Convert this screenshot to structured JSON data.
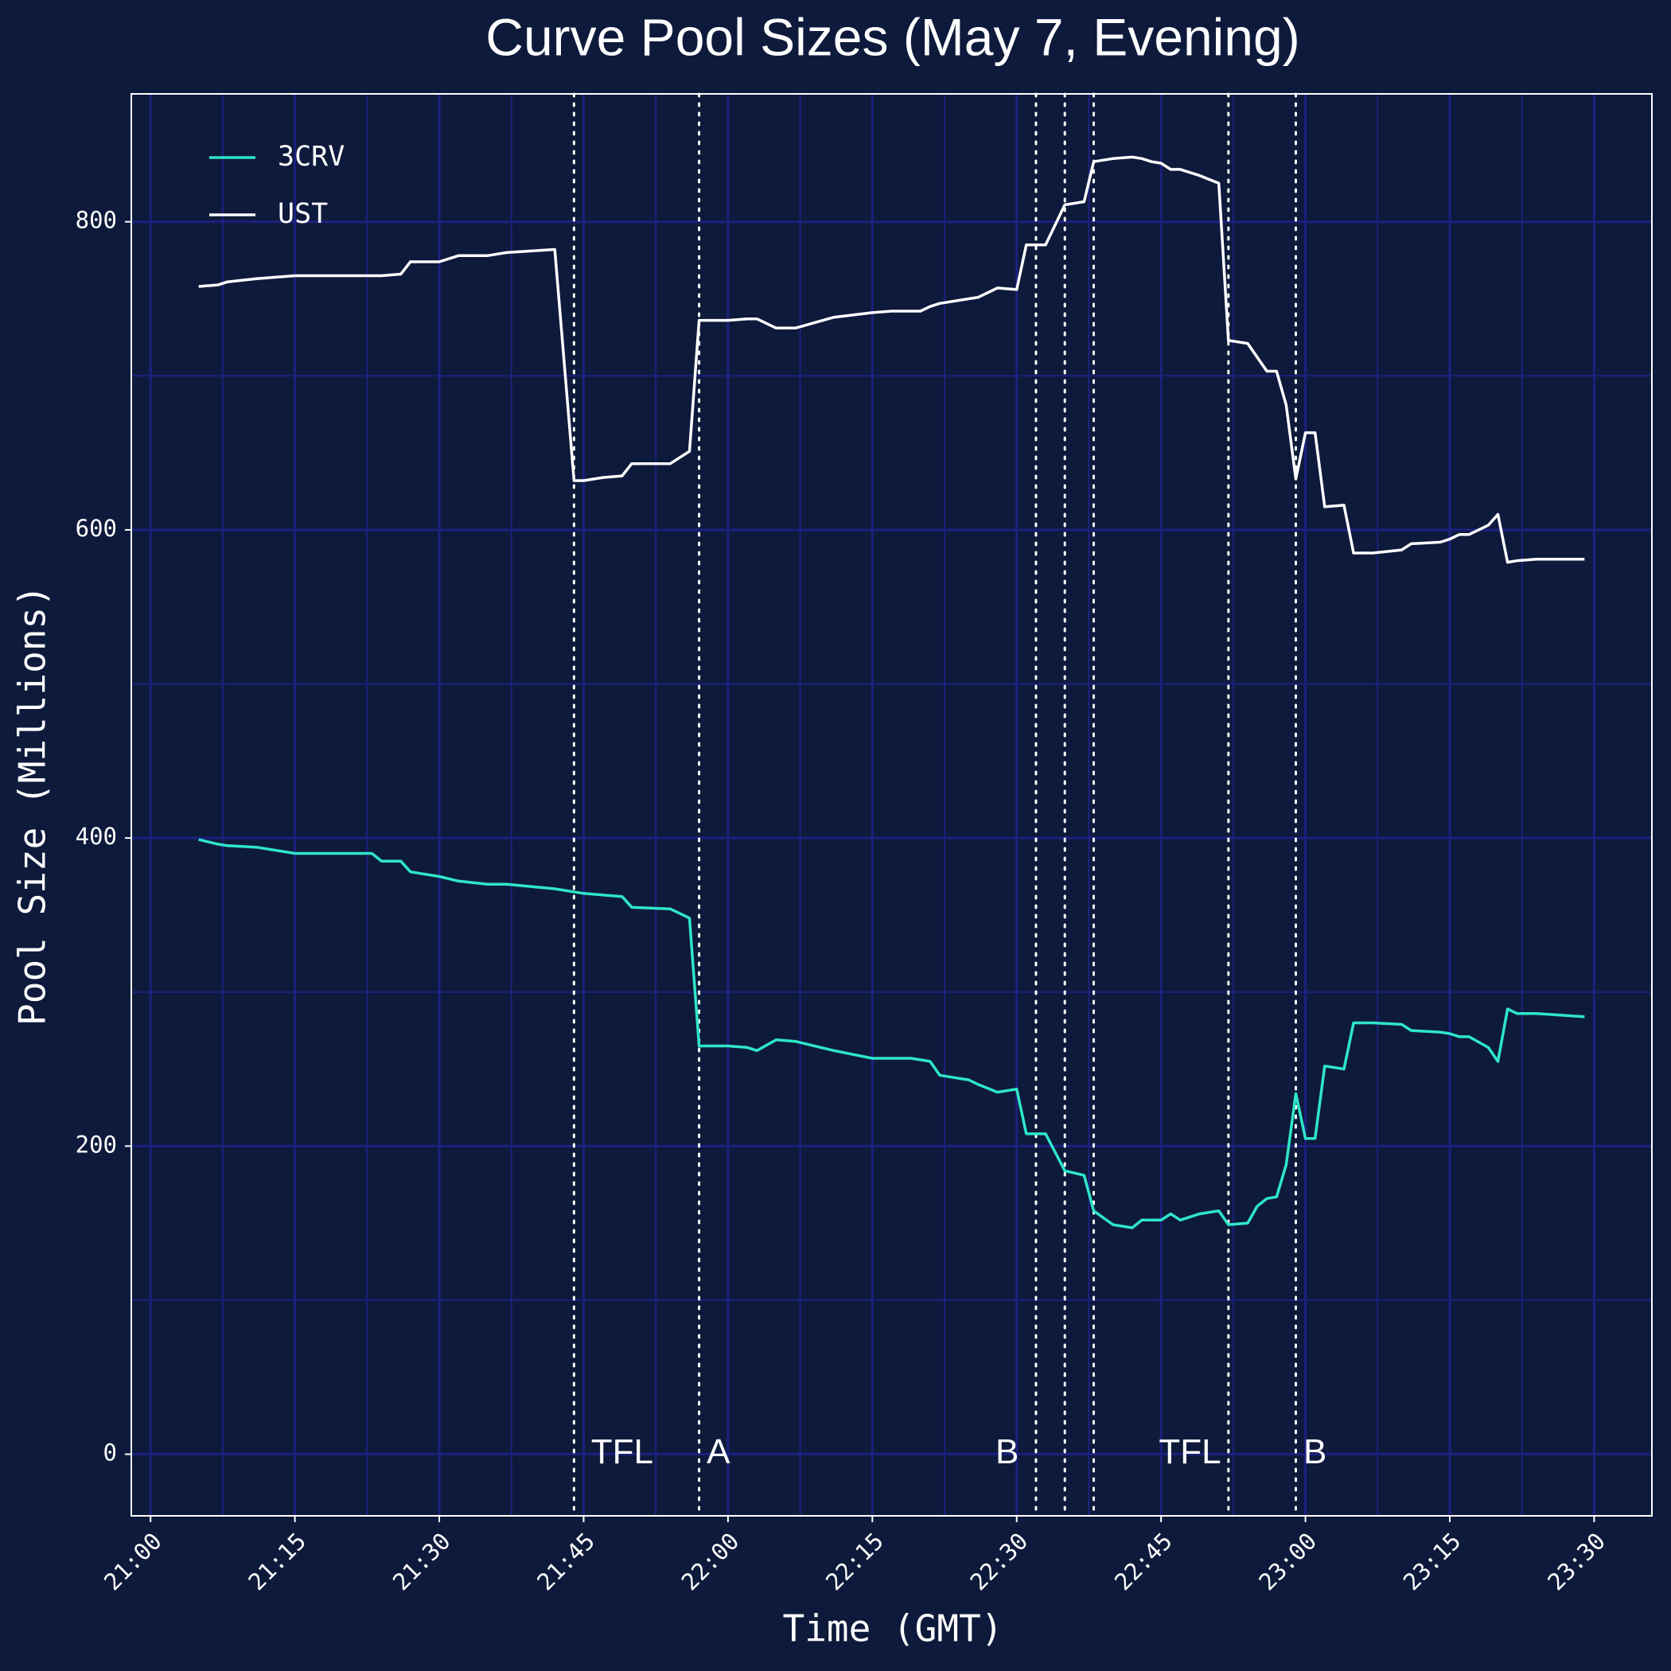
{
  "chart_data": {
    "type": "line",
    "title": "Curve Pool Sizes (May 7, Evening)",
    "x_label": "Time (GMT)",
    "y_label": "Pool Size (Millions)",
    "x": [
      "21:05",
      "21:07",
      "21:08",
      "21:11",
      "21:15",
      "21:23",
      "21:24",
      "21:26",
      "21:27",
      "21:30",
      "21:32",
      "21:35",
      "21:37",
      "21:42",
      "21:44",
      "21:45",
      "21:47",
      "21:49",
      "21:50",
      "21:54",
      "21:56",
      "21:57",
      "22:00",
      "22:02",
      "22:03",
      "22:05",
      "22:07",
      "22:11",
      "22:15",
      "22:17",
      "22:19",
      "22:20",
      "22:21",
      "22:22",
      "22:25",
      "22:26",
      "22:28",
      "22:30",
      "22:31",
      "22:33",
      "22:35",
      "22:37",
      "22:38",
      "22:40",
      "22:42",
      "22:43",
      "22:44",
      "22:45",
      "22:46",
      "22:47",
      "22:49",
      "22:51",
      "22:52",
      "22:54",
      "22:55",
      "22:56",
      "22:57",
      "22:58",
      "22:59",
      "23:00",
      "23:01",
      "23:02",
      "23:04",
      "23:05",
      "23:07",
      "23:10",
      "23:11",
      "23:14",
      "23:15",
      "23:16",
      "23:17",
      "23:19",
      "23:20",
      "23:21",
      "23:22",
      "23:24",
      "23:29"
    ],
    "series": [
      {
        "name": "3CRV",
        "color": "#2ee6c8",
        "values": [
          399,
          396,
          395,
          394,
          390,
          390,
          385,
          385,
          378,
          375,
          372,
          370,
          370,
          367,
          365,
          364,
          363,
          362,
          355,
          354,
          348,
          265,
          265,
          264,
          262,
          269,
          268,
          262,
          257,
          257,
          257,
          256,
          255,
          246,
          243,
          240,
          235,
          237,
          208,
          208,
          184,
          181,
          158,
          149,
          147,
          152,
          152,
          152,
          156,
          152,
          156,
          158,
          149,
          150,
          161,
          166,
          167,
          188,
          234,
          205,
          205,
          252,
          250,
          280,
          280,
          279,
          275,
          274,
          273,
          271,
          271,
          264,
          255,
          289,
          286,
          286,
          284
        ]
      },
      {
        "name": "UST",
        "color": "#ffffff",
        "values": [
          758,
          759,
          761,
          763,
          765,
          765,
          765,
          766,
          774,
          774,
          778,
          778,
          780,
          782,
          632,
          632,
          634,
          635,
          643,
          643,
          651,
          736,
          736,
          737,
          737,
          731,
          731,
          738,
          741,
          742,
          742,
          742,
          745,
          747,
          750,
          751,
          757,
          756,
          785,
          785,
          811,
          813,
          839,
          841,
          842,
          841,
          839,
          838,
          834,
          834,
          830,
          825,
          723,
          721,
          712,
          703,
          703,
          681,
          633,
          663,
          663,
          615,
          616,
          585,
          585,
          587,
          591,
          592,
          594,
          597,
          597,
          603,
          610,
          579,
          580,
          581,
          581
        ]
      }
    ],
    "xlim": [
      "20:58",
      "23:36"
    ],
    "xticks": [
      "21:00",
      "21:15",
      "21:30",
      "21:45",
      "22:00",
      "22:15",
      "22:30",
      "22:45",
      "23:00",
      "23:15",
      "23:30"
    ],
    "xminor_ticks": [
      "21:07:30",
      "21:22:30",
      "21:37:30",
      "21:52:30",
      "22:07:30",
      "22:22:30",
      "22:37:30",
      "22:52:30",
      "23:07:30",
      "23:22:30"
    ],
    "ylim": [
      -40,
      883
    ],
    "yticks": [
      0,
      200,
      400,
      600,
      800
    ],
    "yminor_ticks": [
      100,
      300,
      500,
      700
    ],
    "grid": true,
    "legend": "upper left",
    "event_lines": [
      "21:44",
      "21:57",
      "22:32",
      "22:35",
      "22:38",
      "22:52",
      "22:59"
    ],
    "annotations": [
      {
        "text": "TFL",
        "x": "21:49"
      },
      {
        "text": "A",
        "x": "21:59"
      },
      {
        "text": "B",
        "x": "22:29"
      },
      {
        "text": "TFL",
        "x": "22:48"
      },
      {
        "text": "B",
        "x": "23:01"
      }
    ]
  }
}
